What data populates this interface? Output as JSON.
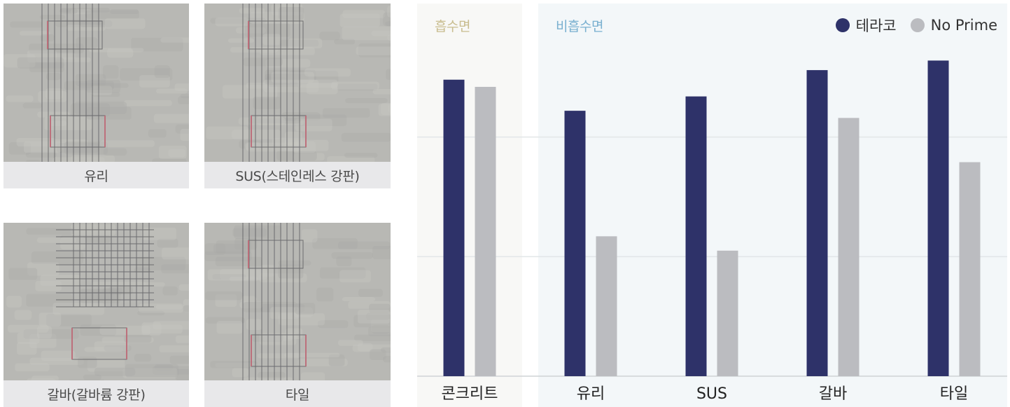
{
  "photos": [
    {
      "id": "glass",
      "caption": "유리",
      "frames": "two-rects"
    },
    {
      "id": "sus",
      "caption": "SUS(스테인레스 강판)",
      "frames": "two-rects"
    },
    {
      "id": "galva",
      "caption": "갈바(갈바륨 강판)",
      "frames": "grid-top"
    },
    {
      "id": "tile",
      "caption": "타일",
      "frames": "two-rects"
    }
  ],
  "chart": {
    "sections": {
      "absorbent": "흡수면",
      "non_absorbent": "비흡수면"
    },
    "legend": [
      {
        "name": "테라코",
        "color": "#2e3269"
      },
      {
        "name": "No Prime",
        "color": "#bbbcc0"
      }
    ]
  },
  "chart_data": {
    "type": "bar",
    "categories": [
      "콘크리트",
      "유리",
      "SUS",
      "갈바",
      "타일"
    ],
    "series": [
      {
        "name": "테라코",
        "values": [
          2.48,
          2.22,
          2.34,
          2.56,
          2.64
        ],
        "color": "#2e3269"
      },
      {
        "name": "No Prime",
        "values": [
          2.42,
          1.17,
          1.05,
          2.16,
          1.79
        ],
        "color": "#bbbcc0"
      }
    ],
    "ylim": [
      0,
      3
    ],
    "grid": true,
    "legend": "top-right",
    "groups": [
      {
        "label": "흡수면",
        "categories": [
          "콘크리트"
        ],
        "color": "#f8f8f6"
      },
      {
        "label": "비흡수면",
        "categories": [
          "유리",
          "SUS",
          "갈바",
          "타일"
        ],
        "color": "#f3f7f9"
      }
    ]
  }
}
